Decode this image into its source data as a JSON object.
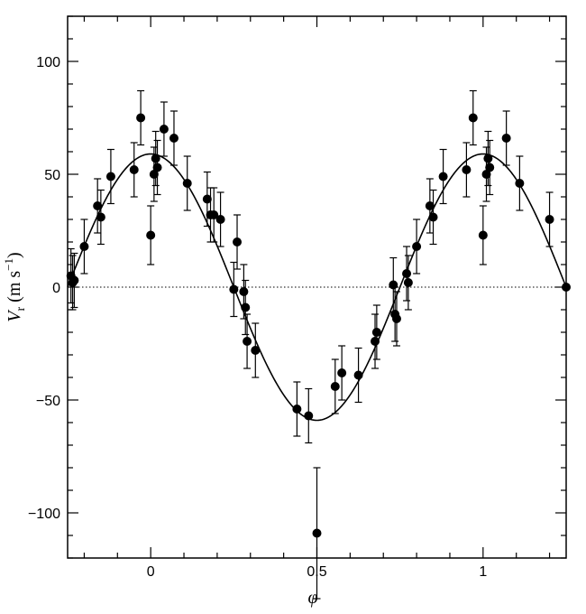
{
  "chart_data": {
    "type": "scatter",
    "xlabel": "φ",
    "ylabel": "V_r (m s^-1)",
    "ylabel_parts": {
      "symbol": "V",
      "subscript": "r",
      "unit_open": " (m s",
      "unit_exp": "−1",
      "unit_close": ")"
    },
    "xlim": [
      -0.25,
      1.25
    ],
    "ylim": [
      -120,
      120
    ],
    "x_ticks": [
      {
        "value": 0,
        "label": "0"
      },
      {
        "value": 0.5,
        "label": "0.5"
      },
      {
        "value": 1,
        "label": "1"
      }
    ],
    "y_ticks": [
      {
        "value": 100,
        "label": "100"
      },
      {
        "value": 50,
        "label": "50"
      },
      {
        "value": 0,
        "label": "0"
      },
      {
        "value": -50,
        "label": "−50"
      },
      {
        "value": -100,
        "label": "−100"
      }
    ],
    "x_minor_step": 0.1,
    "y_minor_step": 10,
    "grid": false,
    "zero_line": {
      "y": 0,
      "style": "dotted"
    },
    "model_curve": {
      "function": "sine",
      "amplitude": 59,
      "phase_zero": -0.25
    },
    "points": [
      {
        "x": -0.24,
        "y": 5,
        "err": 12
      },
      {
        "x": -0.235,
        "y": 2,
        "err": 12
      },
      {
        "x": -0.23,
        "y": 3,
        "err": 12
      },
      {
        "x": -0.2,
        "y": 18,
        "err": 12
      },
      {
        "x": -0.16,
        "y": 36,
        "err": 12
      },
      {
        "x": -0.15,
        "y": 31,
        "err": 12
      },
      {
        "x": -0.12,
        "y": 49,
        "err": 12
      },
      {
        "x": -0.05,
        "y": 52,
        "err": 12
      },
      {
        "x": -0.03,
        "y": 75,
        "err": 12
      },
      {
        "x": 0.0,
        "y": 23,
        "err": 13
      },
      {
        "x": 0.01,
        "y": 50,
        "err": 12
      },
      {
        "x": 0.015,
        "y": 57,
        "err": 12
      },
      {
        "x": 0.02,
        "y": 53,
        "err": 12
      },
      {
        "x": 0.04,
        "y": 70,
        "err": 12
      },
      {
        "x": 0.07,
        "y": 66,
        "err": 12
      },
      {
        "x": 0.11,
        "y": 46,
        "err": 12
      },
      {
        "x": 0.17,
        "y": 39,
        "err": 12
      },
      {
        "x": 0.18,
        "y": 32,
        "err": 12
      },
      {
        "x": 0.19,
        "y": 32,
        "err": 12
      },
      {
        "x": 0.21,
        "y": 30,
        "err": 12
      },
      {
        "x": 0.25,
        "y": -1,
        "err": 12
      },
      {
        "x": 0.26,
        "y": 20,
        "err": 12
      },
      {
        "x": 0.28,
        "y": -2,
        "err": 12
      },
      {
        "x": 0.285,
        "y": -9,
        "err": 12
      },
      {
        "x": 0.29,
        "y": -24,
        "err": 12
      },
      {
        "x": 0.315,
        "y": -28,
        "err": 12
      },
      {
        "x": 0.44,
        "y": -54,
        "err": 12
      },
      {
        "x": 0.475,
        "y": -57,
        "err": 12
      },
      {
        "x": 0.5,
        "y": -109,
        "err": 29
      },
      {
        "x": 0.555,
        "y": -44,
        "err": 12
      },
      {
        "x": 0.575,
        "y": -38,
        "err": 12
      },
      {
        "x": 0.625,
        "y": -39,
        "err": 12
      },
      {
        "x": 0.675,
        "y": -24,
        "err": 12
      },
      {
        "x": 0.68,
        "y": -20,
        "err": 12
      },
      {
        "x": 0.73,
        "y": 1,
        "err": 12
      },
      {
        "x": 0.735,
        "y": -12,
        "err": 12
      },
      {
        "x": 0.74,
        "y": -14,
        "err": 12
      },
      {
        "x": 0.77,
        "y": 6,
        "err": 12
      },
      {
        "x": 0.775,
        "y": 2,
        "err": 12
      },
      {
        "x": 0.8,
        "y": 18,
        "err": 12
      },
      {
        "x": 0.84,
        "y": 36,
        "err": 12
      },
      {
        "x": 0.85,
        "y": 31,
        "err": 12
      },
      {
        "x": 0.88,
        "y": 49,
        "err": 12
      },
      {
        "x": 0.95,
        "y": 52,
        "err": 12
      },
      {
        "x": 0.97,
        "y": 75,
        "err": 12
      },
      {
        "x": 1.0,
        "y": 23,
        "err": 13
      },
      {
        "x": 1.01,
        "y": 50,
        "err": 12
      },
      {
        "x": 1.015,
        "y": 57,
        "err": 12
      },
      {
        "x": 1.02,
        "y": 53,
        "err": 12
      },
      {
        "x": 1.07,
        "y": 66,
        "err": 12
      },
      {
        "x": 1.11,
        "y": 46,
        "err": 12
      },
      {
        "x": 1.2,
        "y": 30,
        "err": 12
      },
      {
        "x": 1.25,
        "y": 0,
        "err": 0
      }
    ]
  }
}
